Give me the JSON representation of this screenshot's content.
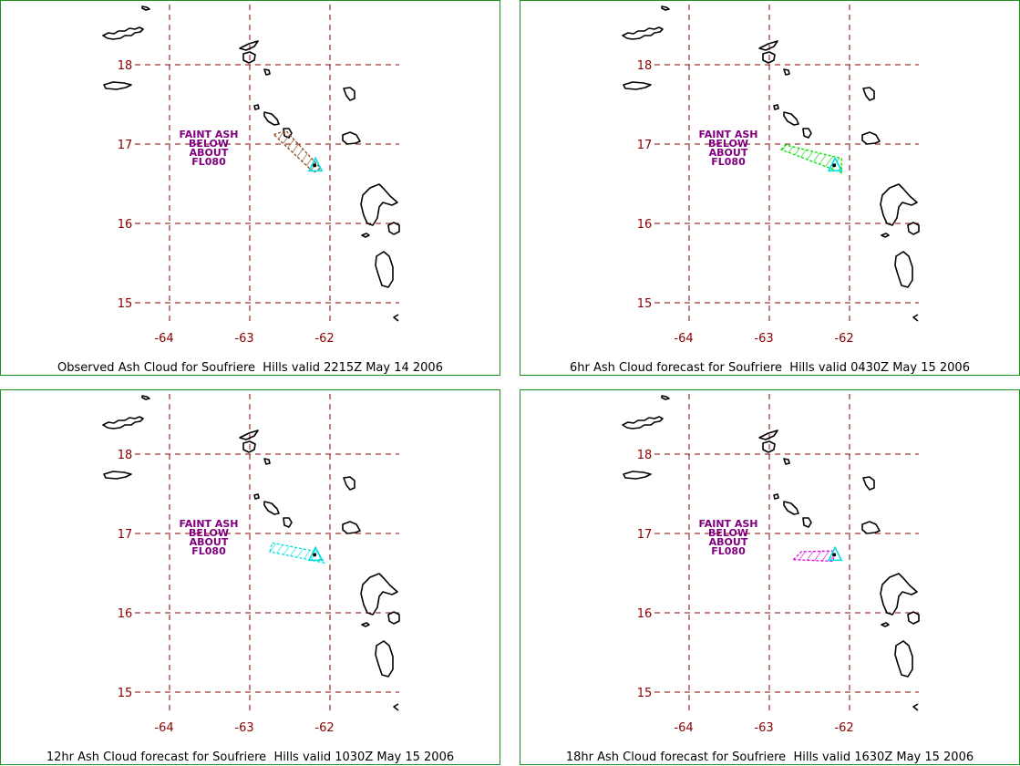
{
  "panels": [
    {
      "caption": "Observed Ash Cloud for Soufriere  Hills valid 2215Z May 14 2006",
      "ash_color": "#8b4a22",
      "ash_polygon": [
        [
          -62.7,
          17.12
        ],
        [
          -62.55,
          17.17
        ],
        [
          -62.12,
          16.7
        ],
        [
          -62.2,
          16.64
        ]
      ]
    },
    {
      "caption": "6hr Ash Cloud forecast for Soufriere  Hills valid 0430Z May 15 2006",
      "ash_color": "#00e000",
      "ash_polygon": [
        [
          -62.85,
          16.93
        ],
        [
          -62.8,
          16.99
        ],
        [
          -62.1,
          16.82
        ],
        [
          -62.1,
          16.64
        ]
      ]
    },
    {
      "caption": "12hr Ash Cloud forecast for Soufriere  Hills valid 1030Z May 15 2006",
      "ash_color": "#00e0e0",
      "ash_polygon": [
        [
          -62.75,
          16.77
        ],
        [
          -62.72,
          16.88
        ],
        [
          -62.15,
          16.77
        ],
        [
          -62.07,
          16.63
        ]
      ]
    },
    {
      "caption": "18hr Ash Cloud forecast for Soufriere  Hills valid 1630Z May 15 2006",
      "ash_color": "#e000e0",
      "ash_polygon": [
        [
          -62.7,
          16.67
        ],
        [
          -62.6,
          16.77
        ],
        [
          -62.2,
          16.78
        ],
        [
          -62.2,
          16.65
        ]
      ]
    }
  ],
  "annotation": [
    "FAINT ASH",
    "BELOW",
    "ABOUT",
    "FL080"
  ],
  "lat_labels": [
    "18",
    "17",
    "16",
    "15"
  ],
  "lon_labels": [
    "-64",
    "-63",
    "-62"
  ],
  "lat_values": [
    18,
    17,
    16,
    15
  ],
  "lon_values": [
    -64,
    -63,
    -62
  ],
  "volcano": {
    "lon": -62.18,
    "lat": 16.72
  },
  "colors": {
    "grid": "#8b0000",
    "tick_label": "#8b0000",
    "annotation": "#800080",
    "coast": "#000000",
    "border": "#1f8f1f",
    "volcano": "#00e0e0"
  }
}
